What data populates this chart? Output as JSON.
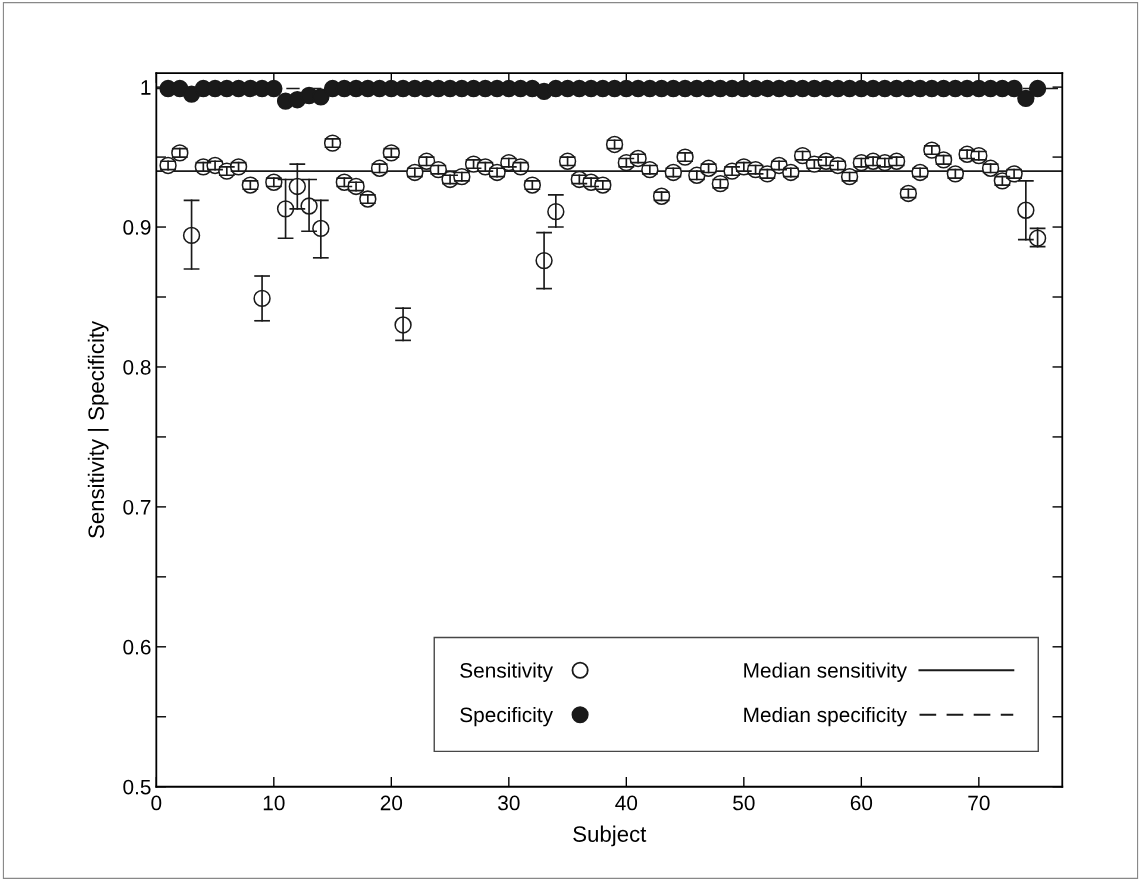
{
  "chart_data": {
    "type": "scatter",
    "xlabel": "Subject",
    "ylabel": "Sensitivity | Specificity",
    "x": [
      1,
      2,
      3,
      4,
      5,
      6,
      7,
      8,
      9,
      10,
      11,
      12,
      13,
      14,
      15,
      16,
      17,
      18,
      19,
      20,
      21,
      22,
      23,
      24,
      25,
      26,
      27,
      28,
      29,
      30,
      31,
      32,
      33,
      34,
      35,
      36,
      37,
      38,
      39,
      40,
      41,
      42,
      43,
      44,
      45,
      46,
      47,
      48,
      49,
      50,
      51,
      52,
      53,
      54,
      55,
      56,
      57,
      58,
      59,
      60,
      61,
      62,
      63,
      64,
      65,
      66,
      67,
      68,
      69,
      70,
      71,
      72,
      73,
      74,
      75
    ],
    "series": [
      {
        "name": "Sensitivity",
        "color": "#ffffff",
        "values": [
          0.944,
          0.953,
          0.894,
          0.943,
          0.944,
          0.94,
          0.943,
          0.93,
          0.849,
          0.932,
          0.913,
          0.929,
          0.915,
          0.899,
          0.96,
          0.932,
          0.929,
          0.92,
          0.942,
          0.953,
          0.83,
          0.939,
          0.947,
          0.941,
          0.934,
          0.936,
          0.945,
          0.943,
          0.939,
          0.946,
          0.943,
          0.93,
          0.876,
          0.911,
          0.947,
          0.934,
          0.932,
          0.93,
          0.959,
          0.946,
          0.949,
          0.941,
          0.922,
          0.939,
          0.95,
          0.937,
          0.942,
          0.931,
          0.94,
          0.943,
          0.941,
          0.938,
          0.944,
          0.939,
          0.951,
          0.945,
          0.947,
          0.944,
          0.936,
          0.946,
          0.947,
          0.946,
          0.947,
          0.924,
          0.939,
          0.955,
          0.948,
          0.938,
          0.952,
          0.951,
          0.942,
          0.933,
          0.938,
          0.912,
          0.892
        ],
        "errors": [
          0.003,
          0.003,
          [
            0.87,
            0.919
          ],
          0.003,
          0.003,
          0.003,
          0.003,
          0.003,
          [
            0.833,
            0.865
          ],
          0.003,
          [
            0.892,
            0.934
          ],
          [
            0.913,
            0.945
          ],
          [
            0.897,
            0.934
          ],
          [
            0.878,
            0.919
          ],
          0.003,
          0.003,
          0.003,
          0.003,
          0.003,
          0.003,
          [
            0.819,
            0.842
          ],
          0.003,
          0.003,
          0.003,
          0.003,
          0.003,
          0.003,
          0.003,
          0.003,
          0.003,
          0.003,
          0.003,
          [
            0.856,
            0.896
          ],
          [
            0.9,
            0.923
          ],
          0.003,
          0.003,
          0.003,
          0.003,
          0.003,
          0.003,
          0.003,
          0.003,
          0.003,
          0.003,
          0.003,
          0.003,
          0.003,
          0.003,
          0.003,
          0.003,
          0.003,
          0.003,
          0.003,
          0.003,
          0.003,
          0.003,
          0.003,
          0.003,
          0.003,
          0.003,
          0.003,
          0.003,
          0.003,
          0.003,
          0.003,
          0.003,
          0.003,
          0.003,
          0.003,
          0.003,
          0.003,
          0.003,
          0.003,
          [
            0.891,
            0.933
          ],
          [
            0.886,
            0.899
          ]
        ]
      },
      {
        "name": "Specificity",
        "color": "#1a1a1a",
        "values": [
          0.999,
          0.999,
          0.995,
          0.999,
          0.999,
          0.999,
          0.999,
          0.999,
          0.999,
          0.999,
          0.99,
          0.991,
          0.994,
          0.993,
          0.999,
          0.999,
          0.999,
          0.999,
          0.999,
          0.999,
          0.999,
          0.999,
          0.999,
          0.999,
          0.999,
          0.999,
          0.999,
          0.999,
          0.999,
          0.999,
          0.999,
          0.999,
          0.997,
          0.999,
          0.999,
          0.999,
          0.999,
          0.999,
          0.999,
          0.999,
          0.999,
          0.999,
          0.999,
          0.999,
          0.999,
          0.999,
          0.999,
          0.999,
          0.999,
          0.999,
          0.999,
          0.999,
          0.999,
          0.999,
          0.999,
          0.999,
          0.999,
          0.999,
          0.999,
          0.999,
          0.999,
          0.999,
          0.999,
          0.999,
          0.999,
          0.999,
          0.999,
          0.999,
          0.999,
          0.999,
          0.999,
          0.999,
          0.999,
          0.992,
          0.999
        ]
      }
    ],
    "ref_lines": [
      {
        "axis": "y",
        "value": 0.94,
        "label": "Median sensitivity",
        "line_style": "solid",
        "color": "#1a1a1a"
      },
      {
        "axis": "y",
        "value": 0.999,
        "label": "Median specificity",
        "line_style": "dashed",
        "color": "#1a1a1a"
      }
    ],
    "marker": "circle",
    "legend": "bottom right",
    "grid": false,
    "xlim": [
      0,
      77.1
    ],
    "xticks": [
      0,
      10,
      20,
      30,
      40,
      50,
      60,
      70
    ],
    "ylim": [
      0.5,
      1.01
    ],
    "yticks": [
      0.5,
      {
        "value": 0.55,
        "label": null
      },
      0.6,
      {
        "value": 0.65,
        "label": null
      },
      0.7,
      {
        "value": 0.75,
        "label": null
      },
      0.8,
      {
        "value": 0.85,
        "label": null
      },
      0.9,
      {
        "value": 0.95,
        "label": null
      },
      1
    ]
  }
}
